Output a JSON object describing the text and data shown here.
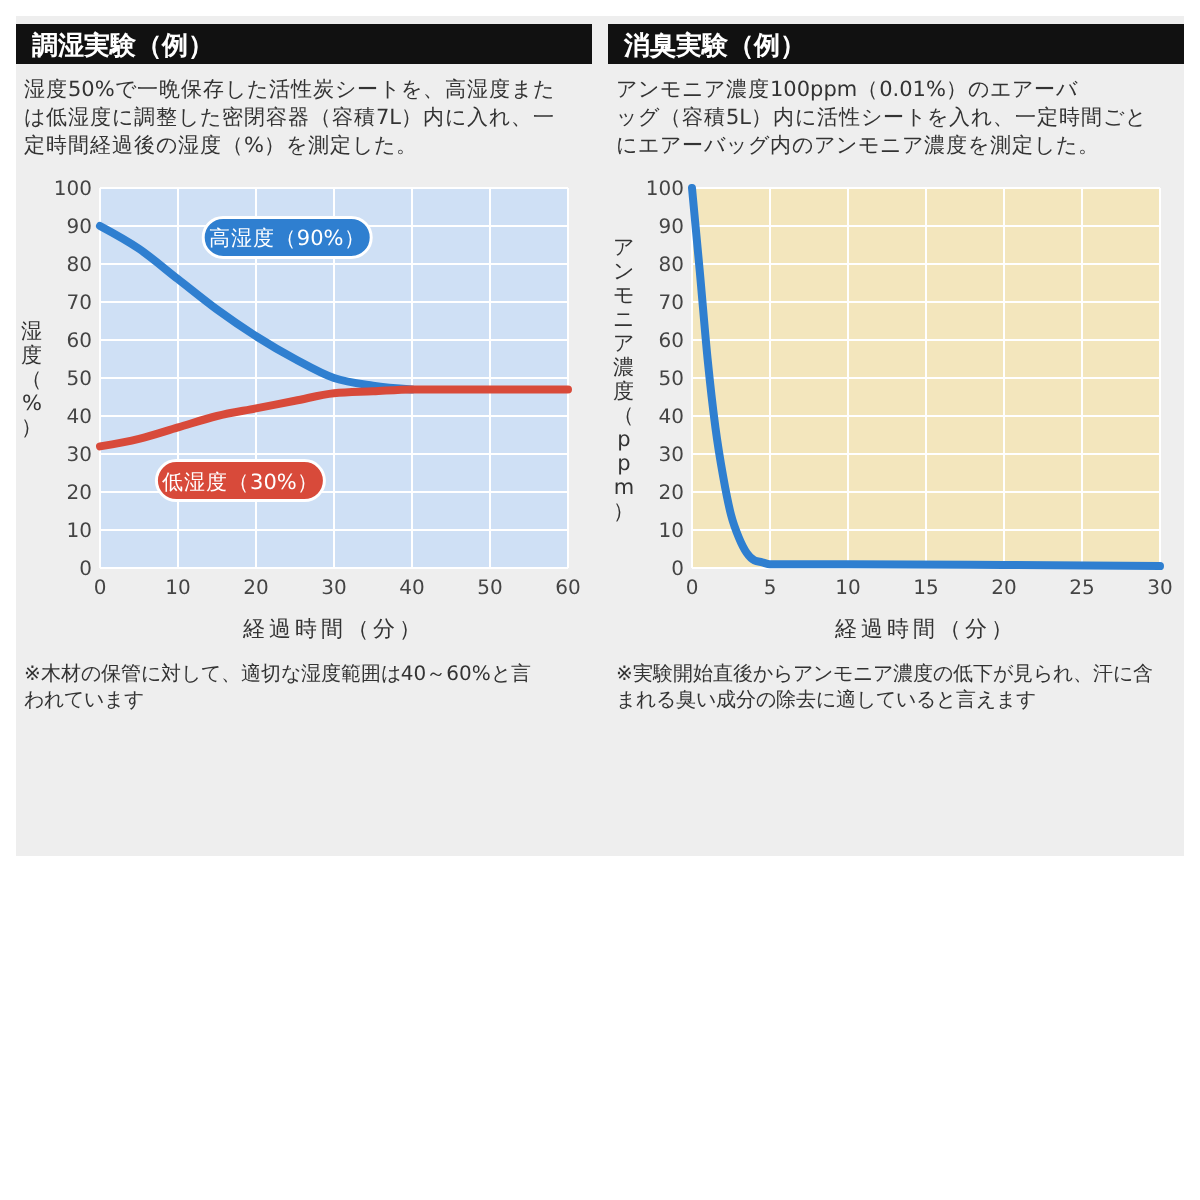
{
  "chart_data": [
    {
      "type": "line",
      "title": "調湿実験（例）",
      "subtitle": "湿度50%で一晩保存した活性炭シートを、高湿度または低湿度に調整した密閉容器（容積7L）内に入れ、一定時間経過後の湿度（%）を測定した。",
      "xlabel": "経過時間（分）",
      "ylabel": "湿度（%）",
      "x": [
        0,
        5,
        10,
        15,
        20,
        25,
        30,
        35,
        40,
        50,
        60
      ],
      "series": [
        {
          "name": "高湿度（90%）",
          "color": "#2f7fd0",
          "values": [
            90,
            84,
            76,
            68,
            61,
            55,
            50,
            48,
            47,
            null,
            null
          ]
        },
        {
          "name": "低湿度（30%）",
          "color": "#d84a3a",
          "values": [
            32,
            34,
            37,
            40,
            42,
            44,
            46,
            46.5,
            47,
            47,
            47
          ]
        }
      ],
      "xlim": [
        0,
        60
      ],
      "xticks": [
        0,
        10,
        20,
        30,
        40,
        50,
        60
      ],
      "ylim": [
        0,
        100
      ],
      "yticks": [
        0,
        10,
        20,
        30,
        40,
        50,
        60,
        70,
        80,
        90,
        100
      ],
      "grid": true,
      "annotations": [
        "※木材の保管に対して、適切な湿度範囲は40～60%と言われています"
      ]
    },
    {
      "type": "line",
      "title": "消臭実験（例）",
      "subtitle": "アンモニア濃度100ppm（0.01%）のエアーバッグ（容積5L）内に活性シートを入れ、一定時間ごとにエアーバッグ内のアンモニア濃度を測定した。",
      "xlabel": "経過時間（分）",
      "ylabel": "アンモニア濃度（ppm）",
      "x": [
        0,
        0.5,
        1,
        1.5,
        2,
        2.5,
        3,
        3.5,
        4,
        4.5,
        5,
        10,
        20,
        30
      ],
      "series": [
        {
          "color": "#2f7fd0",
          "values": [
            100,
            78,
            55,
            37,
            24,
            14,
            8,
            4,
            2,
            1.5,
            1,
            1,
            0.8,
            0.5
          ]
        }
      ],
      "xlim": [
        0,
        30
      ],
      "xticks": [
        0,
        5,
        10,
        15,
        20,
        25,
        30
      ],
      "ylim": [
        0,
        100
      ],
      "yticks": [
        0,
        10,
        20,
        30,
        40,
        50,
        60,
        70,
        80,
        90,
        100
      ],
      "grid": true,
      "annotations": [
        "※実験開始直後からアンモニア濃度の低下が見られ、汗に含まれる臭い成分の除去に適していると言えます"
      ]
    }
  ]
}
